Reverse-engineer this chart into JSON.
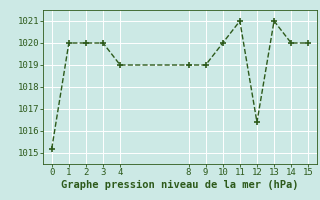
{
  "x": [
    0,
    1,
    2,
    3,
    4,
    8,
    9,
    10,
    11,
    12,
    13,
    14,
    15
  ],
  "y": [
    1015.2,
    1020.0,
    1020.0,
    1020.0,
    1019.0,
    1019.0,
    1019.0,
    1020.0,
    1021.0,
    1016.4,
    1021.0,
    1020.0,
    1020.0
  ],
  "line_color": "#2d5a1b",
  "marker_color": "#2d5a1b",
  "bg_color": "#cce9e5",
  "grid_color": "#b0d8d4",
  "xlabel": "Graphe pression niveau de la mer (hPa)",
  "xlabel_color": "#2d5a1b",
  "ylim": [
    1014.5,
    1021.5
  ],
  "xlim": [
    -0.5,
    15.5
  ],
  "yticks": [
    1015,
    1016,
    1017,
    1018,
    1019,
    1020,
    1021
  ],
  "xticks": [
    0,
    1,
    2,
    3,
    4,
    8,
    9,
    10,
    11,
    12,
    13,
    14,
    15
  ],
  "tick_fontsize": 6.5,
  "xlabel_fontsize": 7.5
}
